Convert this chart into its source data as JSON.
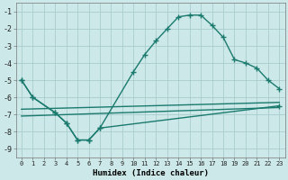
{
  "title": "",
  "xlabel": "Humidex (Indice chaleur)",
  "bg_color": "#cce8e8",
  "grid_color": "#aacccc",
  "line_color": "#1a7a6e",
  "xlim": [
    -0.5,
    23.5
  ],
  "ylim": [
    -9.5,
    -0.5
  ],
  "xticks": [
    0,
    1,
    2,
    3,
    4,
    5,
    6,
    7,
    8,
    9,
    10,
    11,
    12,
    13,
    14,
    15,
    16,
    17,
    18,
    19,
    20,
    21,
    22,
    23
  ],
  "yticks": [
    -9,
    -8,
    -7,
    -6,
    -5,
    -4,
    -3,
    -2,
    -1
  ],
  "line1_x": [
    0,
    1,
    3,
    4,
    5,
    6,
    7,
    10,
    11,
    12,
    13,
    14,
    15,
    16,
    17,
    18,
    19,
    20,
    21,
    22,
    23
  ],
  "line1_y": [
    -5,
    -6,
    -6.9,
    -7.5,
    -8.5,
    -8.5,
    -7.8,
    -4.5,
    -3.5,
    -2.7,
    -2.0,
    -1.3,
    -1.2,
    -1.2,
    -1.8,
    -2.5,
    -3.8,
    -4.0,
    -4.3,
    -5.0,
    -5.5
  ],
  "line2_x": [
    0,
    1,
    3,
    4,
    5,
    6,
    7,
    23
  ],
  "line2_y": [
    -5.0,
    -6.0,
    -6.9,
    -7.5,
    -8.5,
    -8.5,
    -7.8,
    -6.5
  ],
  "line3_x": [
    0,
    23
  ],
  "line3_y": [
    -6.7,
    -6.3
  ],
  "line4_x": [
    0,
    23
  ],
  "line4_y": [
    -7.1,
    -6.6
  ]
}
